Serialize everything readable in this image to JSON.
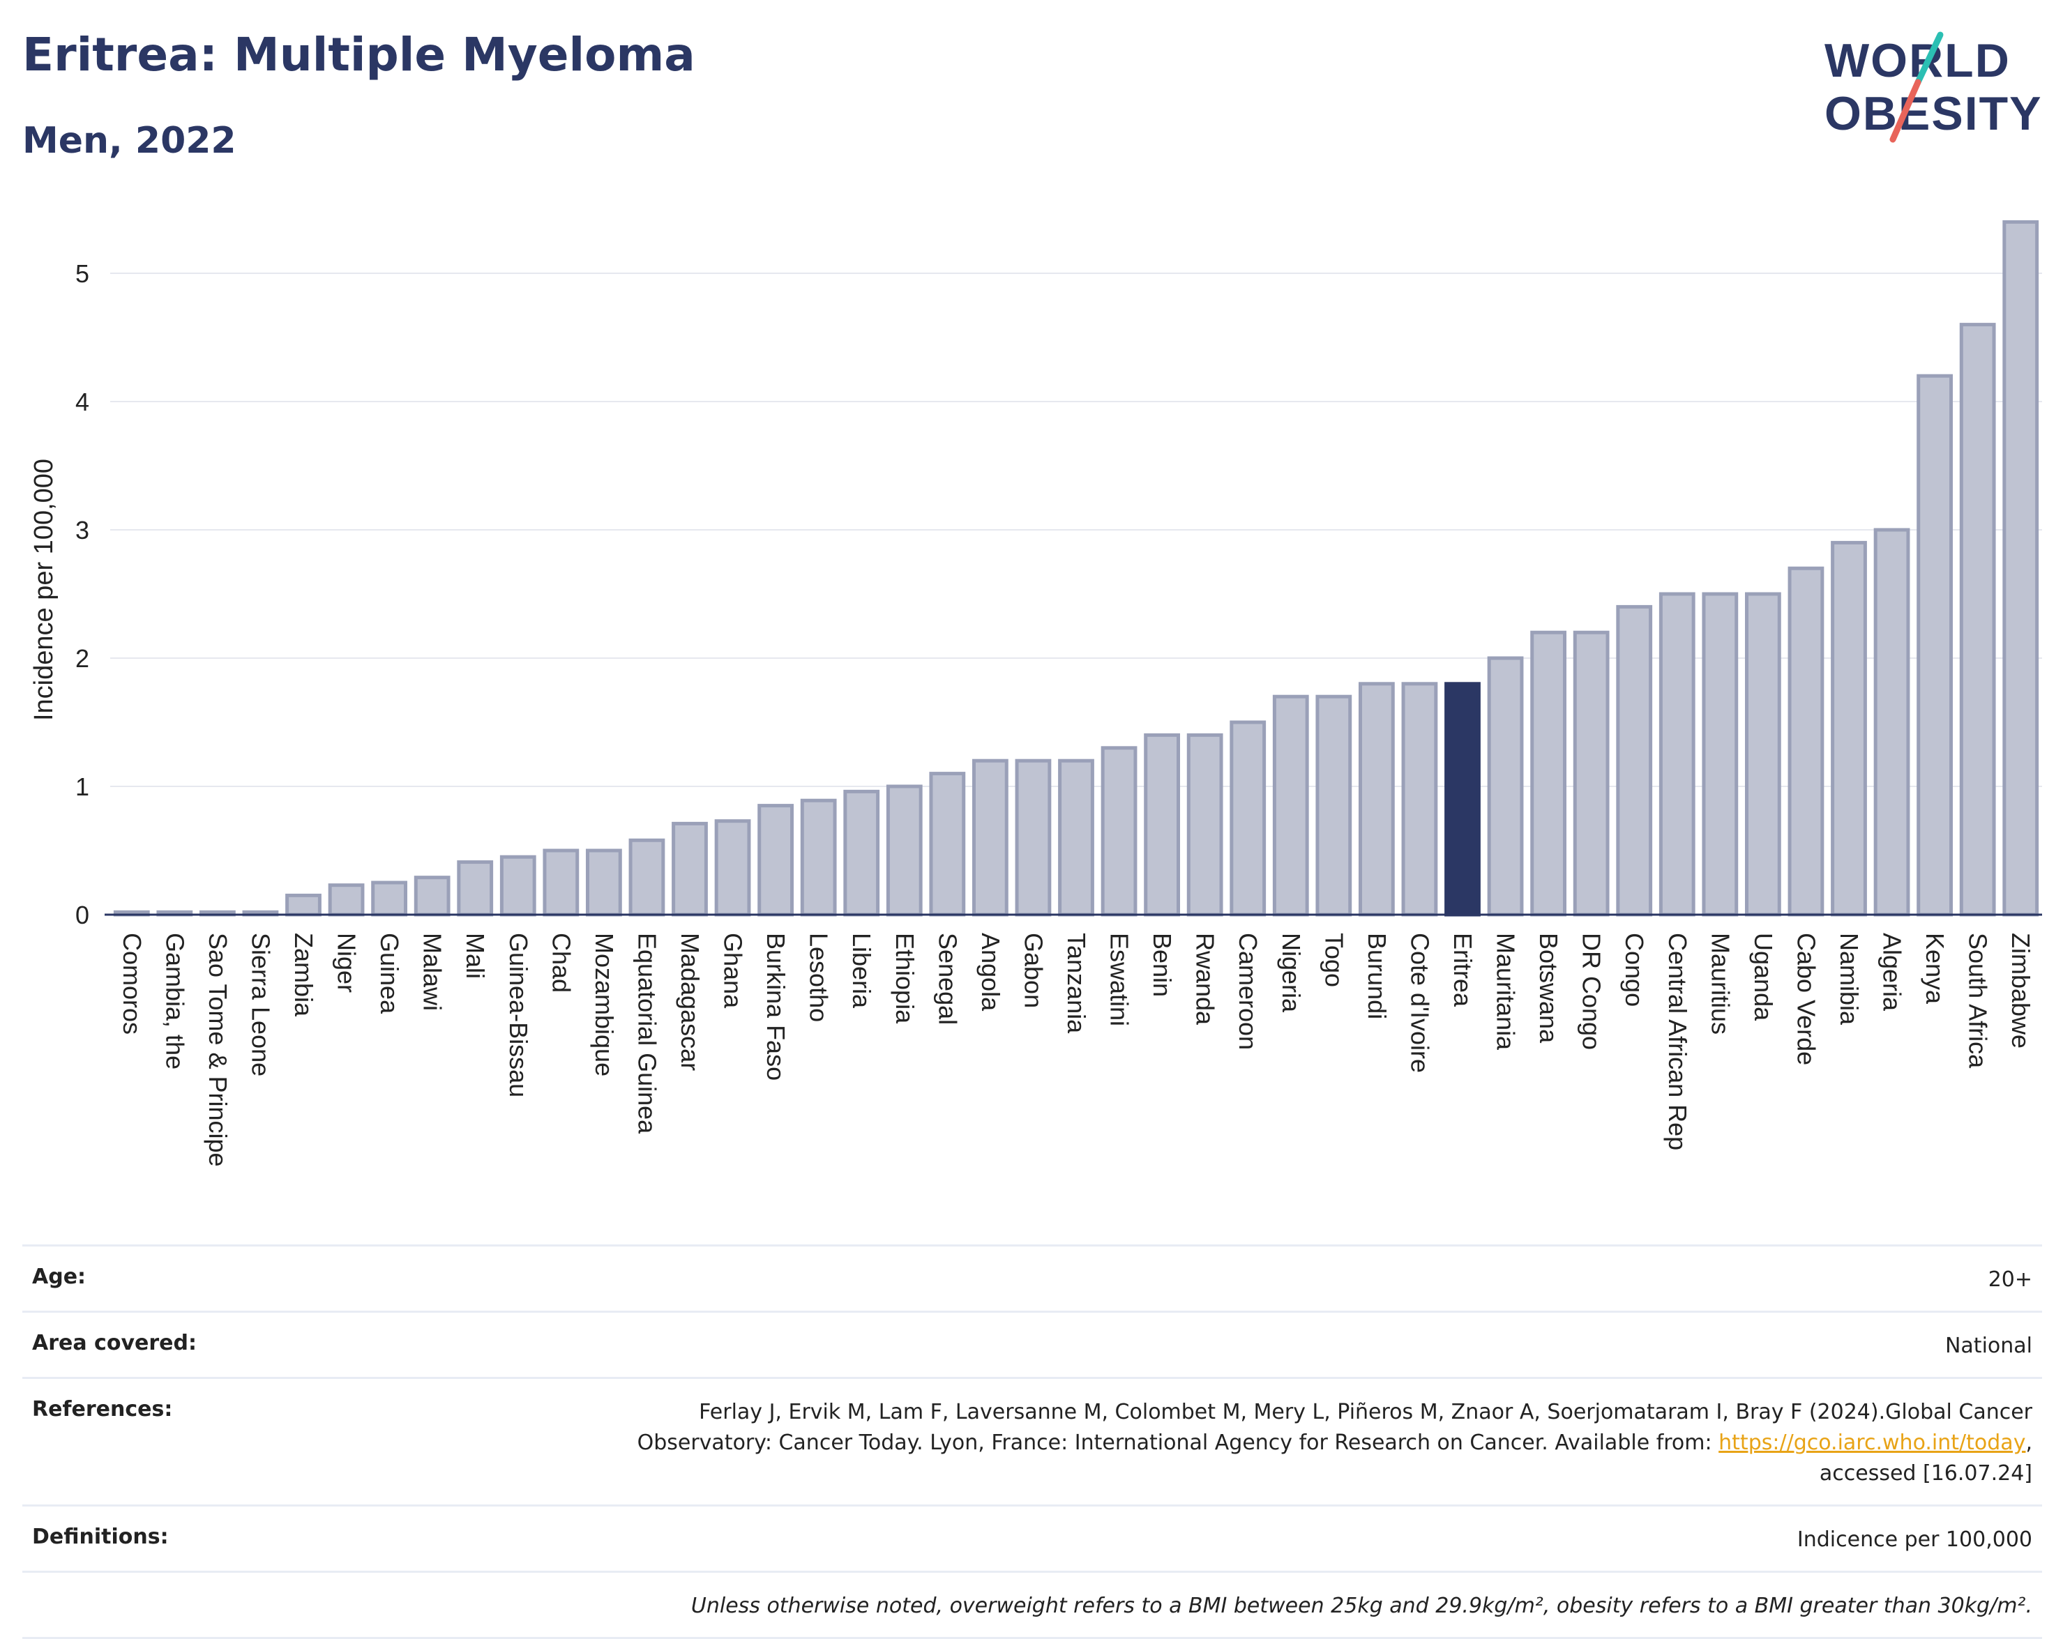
{
  "header": {
    "title": "Eritrea: Multiple Myeloma",
    "subtitle": "Men, 2022"
  },
  "logo": {
    "line1": "WORLD",
    "line2": "OBESITY",
    "colors": {
      "text": "#2b3764",
      "slash_top": "#2bbfb3",
      "slash_bottom": "#e8645a"
    }
  },
  "colors": {
    "bar_fill": "#bfc3d2",
    "bar_stroke": "#9aa0b8",
    "highlight": "#2b3764",
    "grid": "#e6e8ef",
    "axis": "#333333"
  },
  "chart_data": {
    "type": "bar",
    "ylabel": "Incidence per 100,000",
    "xlabel": "",
    "ylim": [
      0,
      5.5
    ],
    "yticks": [
      0,
      1,
      2,
      3,
      4,
      5
    ],
    "grid": true,
    "highlight_category": "Eritrea",
    "categories": [
      "Comoros",
      "Gambia, the",
      "Sao Tome & Principe",
      "Sierra Leone",
      "Zambia",
      "Niger",
      "Guinea",
      "Malawi",
      "Mali",
      "Guinea-Bissau",
      "Chad",
      "Mozambique",
      "Equatorial Guinea",
      "Madagascar",
      "Ghana",
      "Burkina Faso",
      "Lesotho",
      "Liberia",
      "Ethiopia",
      "Senegal",
      "Angola",
      "Gabon",
      "Tanzania",
      "Eswatini",
      "Benin",
      "Rwanda",
      "Cameroon",
      "Nigeria",
      "Togo",
      "Burundi",
      "Cote d'Ivoire",
      "Eritrea",
      "Mauritania",
      "Botswana",
      "DR Congo",
      "Congo",
      "Central African Rep",
      "Mauritius",
      "Uganda",
      "Cabo Verde",
      "Namibia",
      "Algeria",
      "Kenya",
      "South Africa",
      "Zimbabwe"
    ],
    "values": [
      0.02,
      0.02,
      0.02,
      0.02,
      0.15,
      0.23,
      0.25,
      0.29,
      0.41,
      0.45,
      0.5,
      0.5,
      0.58,
      0.71,
      0.73,
      0.85,
      0.89,
      0.96,
      1.0,
      1.1,
      1.2,
      1.2,
      1.2,
      1.3,
      1.4,
      1.4,
      1.5,
      1.7,
      1.7,
      1.8,
      1.8,
      1.8,
      2.0,
      2.2,
      2.2,
      2.4,
      2.5,
      2.5,
      2.5,
      2.7,
      2.9,
      3.0,
      4.2,
      4.6,
      5.4
    ]
  },
  "meta": {
    "age_label": "Age:",
    "age_value": "20+",
    "area_label": "Area covered:",
    "area_value": "National",
    "references_label": "References:",
    "references_text_1": "Ferlay J, Ervik M, Lam F, Laversanne M, Colombet M, Mery L, Piñeros M, Znaor A, Soerjomataram I, Bray F (2024).Global Cancer",
    "references_text_2": "Observatory: Cancer Today. Lyon, France: International Agency for Research on Cancer. Available from:",
    "references_link": "https://gco.iarc.who.int/today",
    "references_text_3": "accessed [16.07.24]",
    "definitions_label": "Definitions:",
    "definitions_value": "Indicence per 100,000",
    "note": "Unless otherwise noted, overweight refers to a BMI between 25kg and 29.9kg/m², obesity refers to a BMI greater than 30kg/m²."
  }
}
